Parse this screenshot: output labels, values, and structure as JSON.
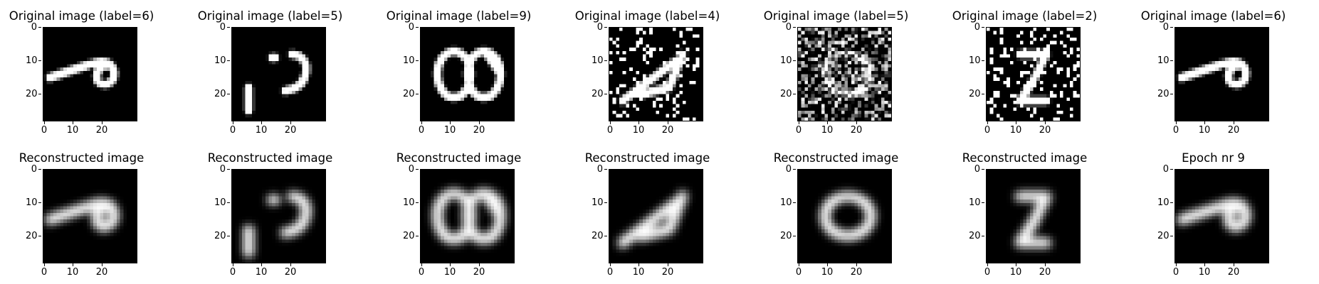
{
  "figure": {
    "top_titles": [
      "Original image (label=6)",
      "Original image (label=5)",
      "Original image (label=9)",
      "Original image (label=4)",
      "Original image (label=5)",
      "Original image (label=2)",
      "Original image (label=6)"
    ],
    "bottom_titles": [
      "Reconstructed image",
      "Reconstructed image",
      "Reconstructed image",
      "Reconstructed image",
      "Reconstructed image",
      "Reconstructed image",
      "Epoch nr 9"
    ],
    "y_ticks": [
      "0",
      "10",
      "20"
    ],
    "x_ticks": [
      "0",
      "10",
      "20"
    ]
  }
}
